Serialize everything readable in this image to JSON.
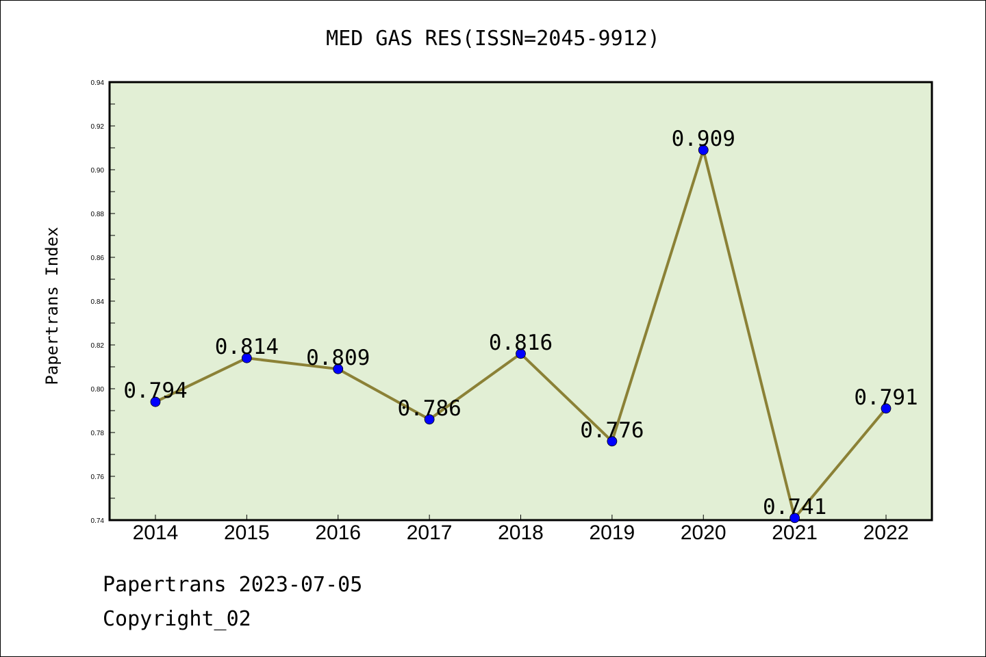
{
  "chart_data": {
    "type": "line",
    "title": "MED GAS RES(ISSN=2045-9912)",
    "xlabel": "",
    "ylabel": "Papertrans Index",
    "categories": [
      "2014",
      "2015",
      "2016",
      "2017",
      "2018",
      "2019",
      "2020",
      "2021",
      "2022"
    ],
    "series": [
      {
        "values": [
          0.794,
          0.814,
          0.809,
          0.786,
          0.816,
          0.776,
          0.909,
          0.741,
          0.791
        ]
      }
    ],
    "data_labels": [
      "0.794",
      "0.814",
      "0.809",
      "0.786",
      "0.816",
      "0.776",
      "0.909",
      "0.741",
      "0.791"
    ],
    "ylim": [
      0.74,
      0.94
    ],
    "yticks": [
      "0.74",
      "0.76",
      "0.78",
      "0.80",
      "0.82",
      "0.84",
      "0.86",
      "0.88",
      "0.90",
      "0.92",
      "0.94"
    ],
    "grid": false,
    "colors": {
      "plot_background": "#e2efd5",
      "line": "#8b8136",
      "marker": "#0000ff"
    }
  },
  "footer": {
    "line1": "Papertrans 2023-07-05",
    "line2": "Copyright_02"
  }
}
